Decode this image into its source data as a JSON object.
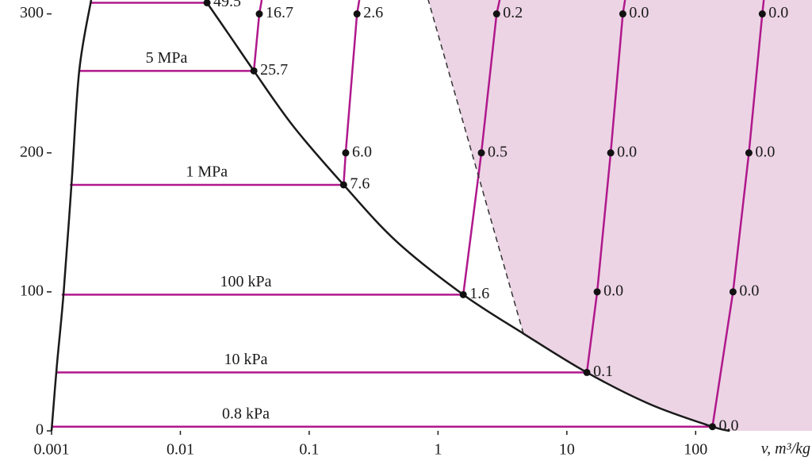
{
  "chart_data": {
    "type": "line",
    "xlabel": "v, m³/kg",
    "xscale": "log",
    "xlim": [
      0.001,
      800
    ],
    "xticks": [
      0.001,
      0.01,
      0.1,
      1,
      10,
      100
    ],
    "ylim": [
      0,
      310
    ],
    "yticks": [
      0,
      100,
      200,
      300
    ],
    "curve_color": "#1a1a1a",
    "isobar_color": "#b0188c",
    "region_color": "#ecd4e4",
    "saturated_liquid": {
      "x": [
        0.001,
        0.0011,
        0.00124,
        0.00143,
        0.00164,
        0.00203
      ],
      "values": [
        0,
        47,
        99,
        178,
        259,
        310
      ]
    },
    "saturated_vapor": {
      "x": [
        0.0161,
        0.0243,
        0.0372,
        0.0755,
        0.185,
        0.48,
        1.57,
        4.6,
        14.3,
        44.6,
        135,
        184
      ],
      "values": [
        308,
        284,
        259,
        219,
        177,
        136,
        98,
        70,
        42,
        19,
        3,
        0
      ]
    },
    "dashed_line": {
      "x": [
        4.6,
        0.84
      ],
      "values": [
        70,
        310
      ]
    },
    "isobars": [
      {
        "x": [
          0.00203,
          0.0161
        ],
        "values": [
          308,
          308
        ]
      },
      {
        "name": "5 MPa",
        "x": [
          0.00164,
          0.0372,
          0.041,
          0.0428
        ],
        "values": [
          259,
          259,
          300,
          310
        ]
      },
      {
        "name": "1 MPa",
        "x": [
          0.00139,
          0.185,
          0.192,
          0.235,
          0.245
        ],
        "values": [
          177,
          177,
          200,
          300,
          310
        ]
      },
      {
        "name": "100 kPa",
        "x": [
          0.0012,
          1.57,
          2.17,
          2.85,
          3.01
        ],
        "values": [
          98,
          98,
          200,
          300,
          310
        ]
      },
      {
        "name": "10 kPa",
        "x": [
          0.0011,
          14.3,
          17.2,
          21.9,
          27.2,
          28.3
        ],
        "values": [
          42,
          42,
          100,
          200,
          300,
          310
        ]
      },
      {
        "name": "0.8 kPa",
        "x": [
          0.001,
          135,
          195,
          259,
          329,
          338
        ],
        "values": [
          3,
          3,
          100,
          200,
          300,
          310
        ]
      }
    ],
    "points": {
      "x": [
        0.0161,
        0.0372,
        0.185,
        1.57,
        14.3,
        135,
        0.041,
        0.192,
        0.235,
        2.17,
        2.85,
        17.2,
        21.9,
        27.2,
        195,
        259,
        329
      ],
      "values": [
        308,
        259,
        177,
        98,
        42,
        3,
        300,
        200,
        300,
        200,
        300,
        100,
        200,
        300,
        100,
        200,
        300
      ],
      "labels": [
        "49.5",
        "25.7",
        "7.6",
        "1.6",
        "0.1",
        "0.0",
        "16.7",
        "6.0",
        "2.6",
        "0.5",
        "0.2",
        "0.0",
        "0.0",
        "0.0",
        "0.0",
        "0.0",
        "0.0"
      ]
    }
  }
}
